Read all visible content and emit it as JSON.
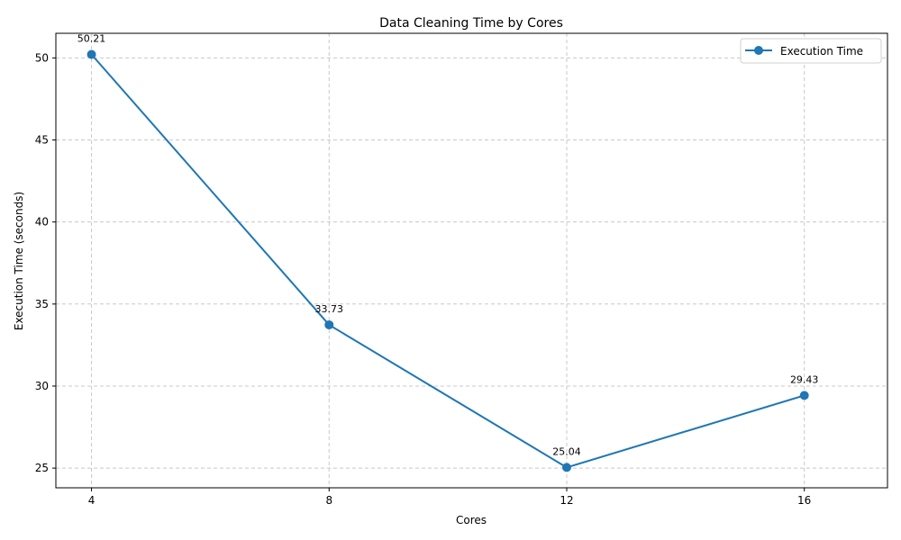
{
  "chart_data": {
    "type": "line",
    "title": "Data Cleaning Time by Cores",
    "xlabel": "Cores",
    "ylabel": "Execution Time (seconds)",
    "x": [
      4,
      8,
      12,
      16
    ],
    "xticks": [
      "4",
      "8",
      "12",
      "16"
    ],
    "yticks": [
      "25",
      "30",
      "35",
      "40",
      "45",
      "50"
    ],
    "series": [
      {
        "name": "Execution Time",
        "values": [
          50.21,
          33.73,
          25.04,
          29.43
        ],
        "labels": [
          "50.21",
          "33.73",
          "25.04",
          "29.43"
        ],
        "color": "#1f77b4"
      }
    ],
    "xlim": [
      3.4,
      17.4
    ],
    "ylim": [
      23.8,
      51.5
    ],
    "grid": true,
    "legend_position": "top-right"
  }
}
